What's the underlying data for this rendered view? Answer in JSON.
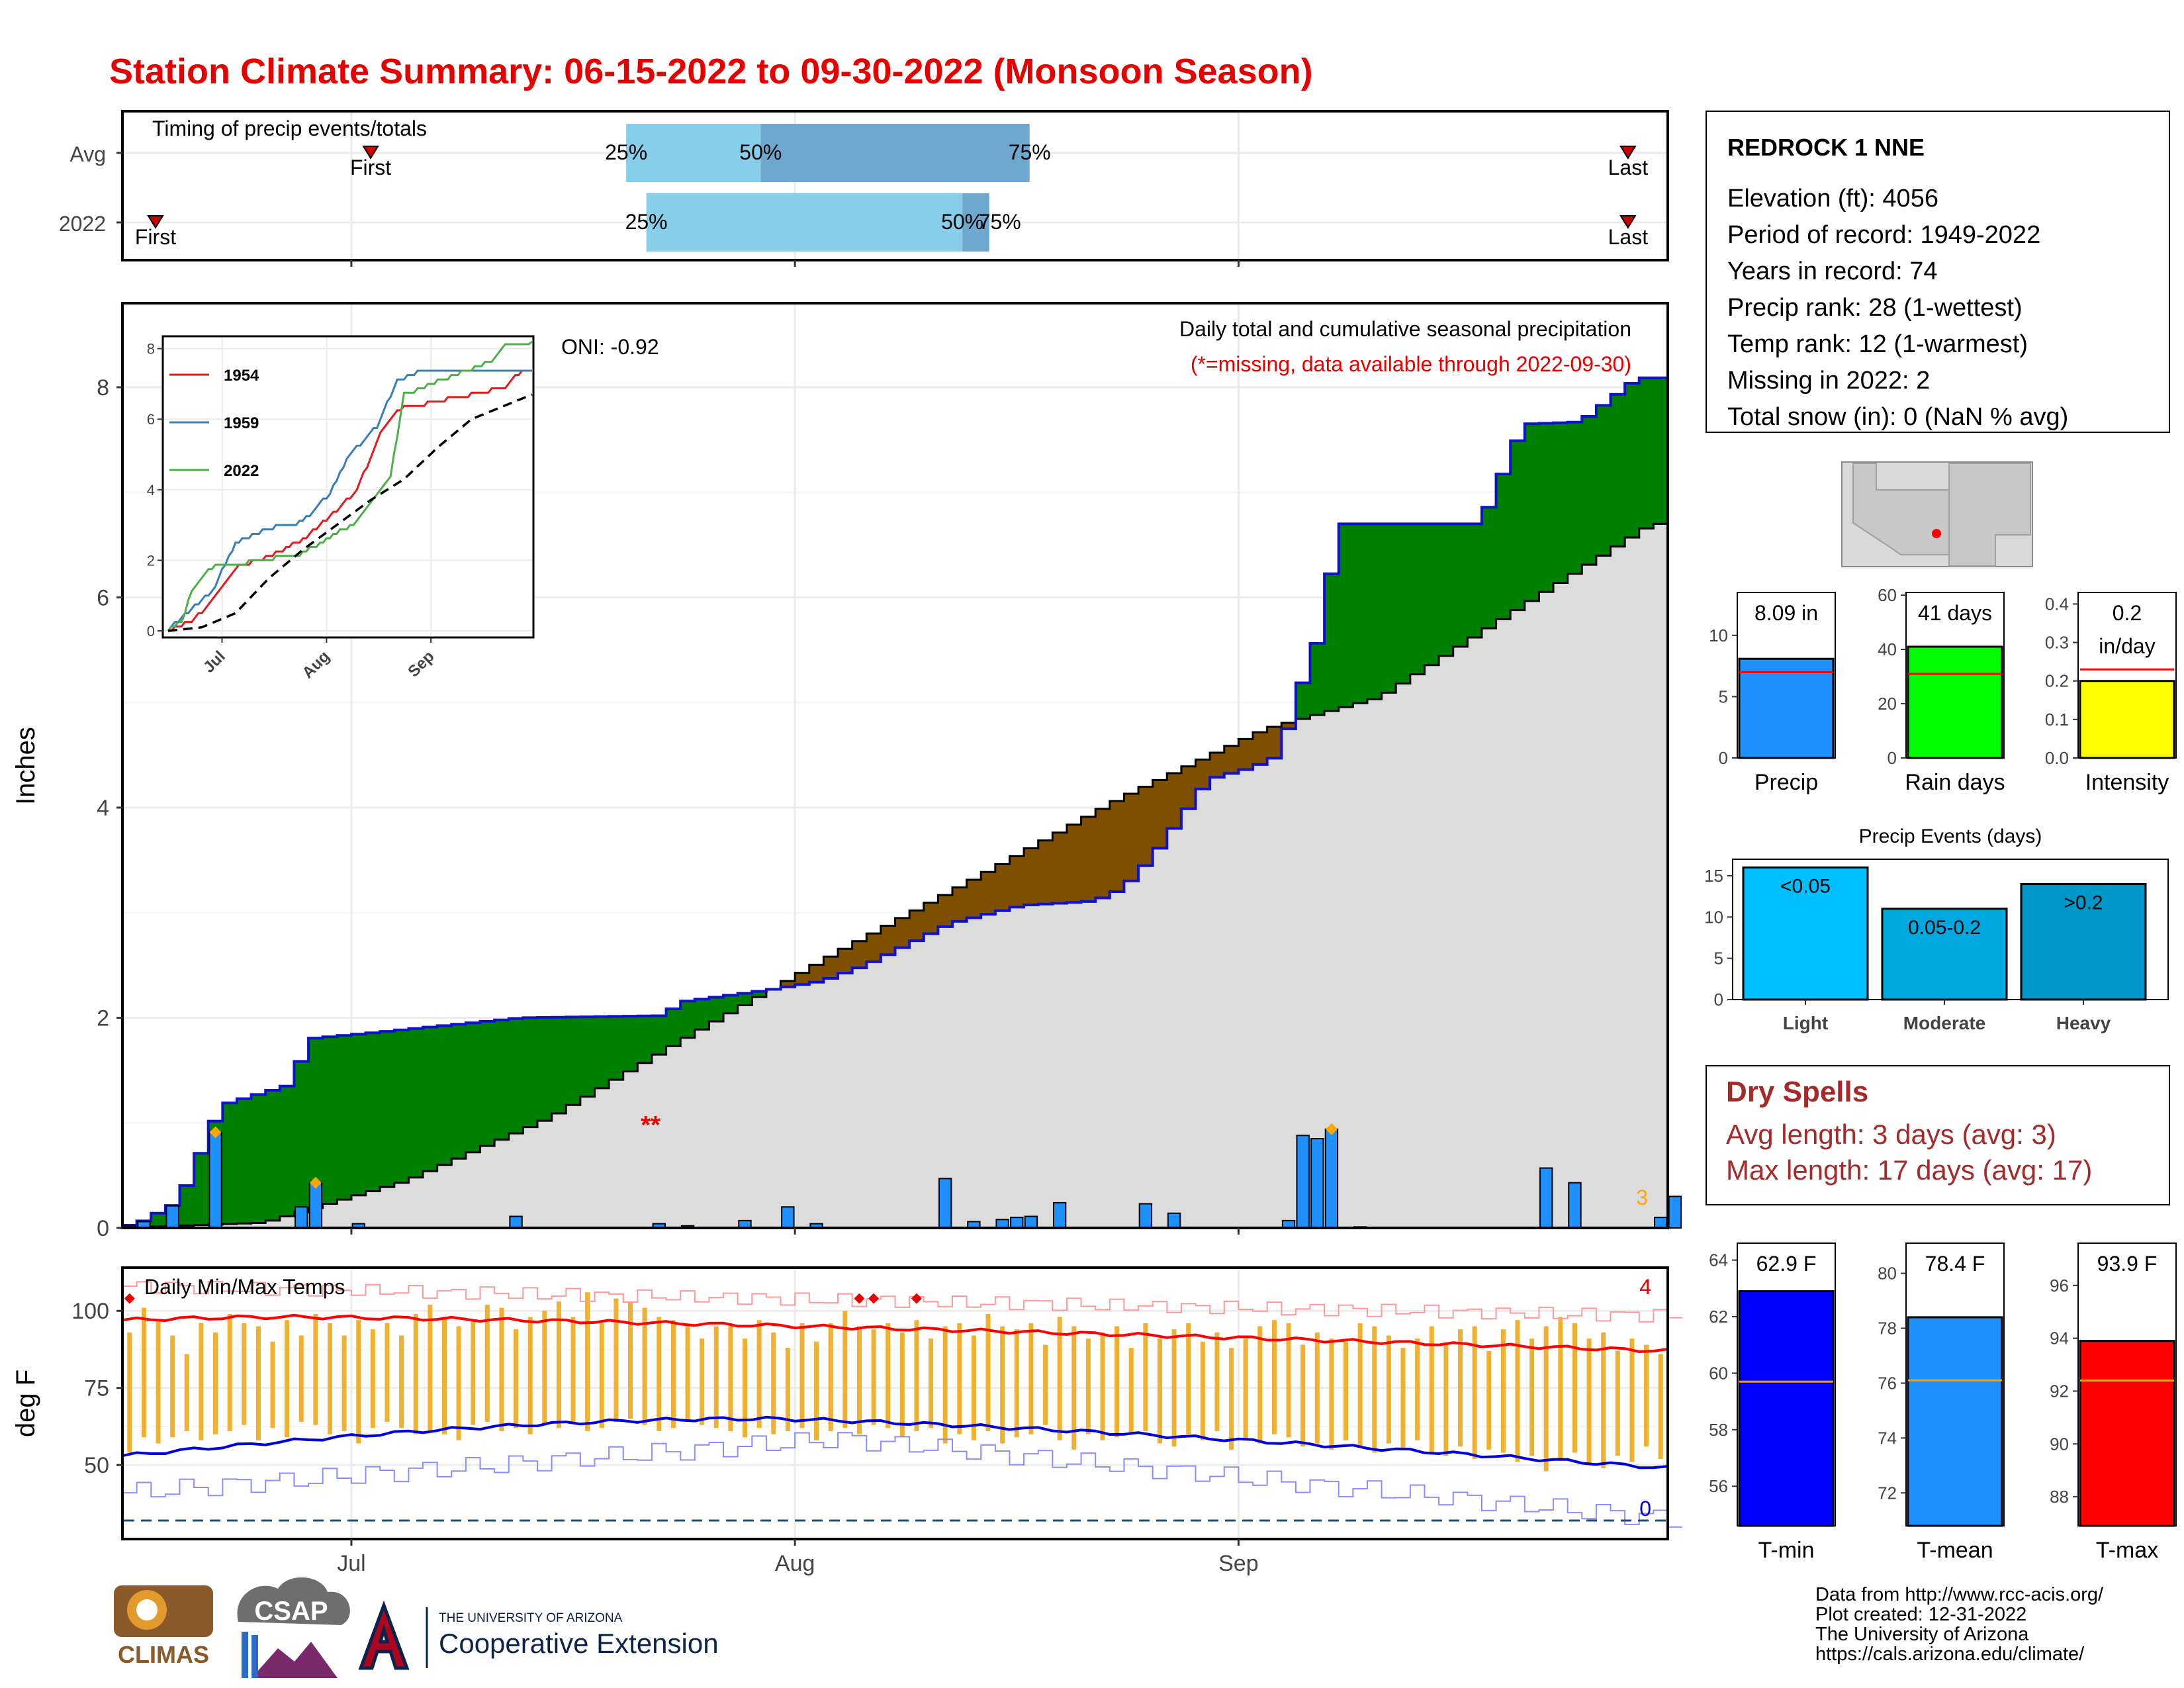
{
  "title": "Station Climate Summary: 06-15-2022 to 09-30-2022 (Monsoon Season)",
  "colors": {
    "title": "#e60000",
    "cum_above": "#008000",
    "cum_below": "#7f4f00",
    "avg_fill": "#dcdcdc",
    "obs_line": "#1010d0",
    "daily_bar": "#1e90ff",
    "temp_bar": "#f0b030",
    "tmax_avg": "#ff0000",
    "tmin_avg": "#0000dd",
    "dry_spells": "#a52a2a"
  },
  "timing": {
    "header": "Timing of precip events/totals",
    "rows": [
      {
        "label": "Avg",
        "first": 0.24,
        "p25": 0.62,
        "p50": 0.82,
        "p75": 1.22,
        "last": 2.11,
        "first_label": "First",
        "last_label": "Last",
        "p25_label": "25%",
        "p50_label": "50%",
        "p75_label": "75%"
      },
      {
        "label": "2022",
        "first": -0.08,
        "p25": 0.65,
        "p50": 1.12,
        "p75": 1.16,
        "last": 2.11,
        "first_label": "First",
        "last_label": "Last",
        "p25_label": "25%",
        "p50_label": "50%",
        "p75_label": "75%"
      }
    ]
  },
  "chart_data": [
    {
      "type": "area",
      "name": "main-precip",
      "ylabel": "Inches",
      "ylim": [
        0,
        8.8
      ],
      "yticks": [
        0,
        2,
        4,
        6,
        8
      ],
      "xticks": [
        "Jul",
        "Aug",
        "Sep"
      ],
      "x_tick_offsets_days": [
        16,
        47,
        78
      ],
      "days": 108,
      "header": "Daily total and cumulative seasonal precipitation",
      "subheader": "(*=missing, data available through 2022-09-30)",
      "oni_label": "ONI: -0.92",
      "missing_marker": "**",
      "missing_day": 37,
      "corner_label": "3",
      "cumulative_observed_knots": [
        [
          0,
          0.02
        ],
        [
          1,
          0.03
        ],
        [
          4,
          0.25
        ],
        [
          7,
          1.17
        ],
        [
          12,
          1.37
        ],
        [
          13,
          1.8
        ],
        [
          17,
          1.85
        ],
        [
          28,
          2.0
        ],
        [
          38,
          2.02
        ],
        [
          39,
          2.15
        ],
        [
          45,
          2.26
        ],
        [
          49,
          2.35
        ],
        [
          52,
          2.5
        ],
        [
          58,
          2.9
        ],
        [
          63,
          3.07
        ],
        [
          68,
          3.11
        ],
        [
          70,
          3.23
        ],
        [
          72,
          3.52
        ],
        [
          76,
          4.27
        ],
        [
          79,
          4.38
        ],
        [
          81,
          4.5
        ],
        [
          82,
          5.0
        ],
        [
          84,
          5.75
        ],
        [
          85,
          6.7
        ],
        [
          95,
          6.7
        ],
        [
          98,
          7.65
        ],
        [
          102,
          7.67
        ],
        [
          106,
          8.09
        ],
        [
          107,
          8.09
        ]
      ],
      "cumulative_average_knots": [
        [
          0,
          0.0
        ],
        [
          10,
          0.05
        ],
        [
          20,
          0.45
        ],
        [
          30,
          1.05
        ],
        [
          40,
          1.85
        ],
        [
          50,
          2.62
        ],
        [
          60,
          3.35
        ],
        [
          70,
          4.1
        ],
        [
          80,
          4.75
        ],
        [
          88,
          5.05
        ],
        [
          96,
          5.75
        ],
        [
          107,
          6.7
        ]
      ],
      "daily_precip": {
        "x": [
          1,
          2,
          4,
          7,
          13,
          14,
          17,
          28,
          38,
          40,
          44,
          47,
          49,
          58,
          60,
          62,
          63,
          64,
          66,
          72,
          74,
          82,
          83,
          84,
          85,
          87,
          100,
          102,
          108,
          109
        ],
        "values": [
          0.02,
          0.06,
          0.21,
          0.91,
          0.2,
          0.43,
          0.04,
          0.11,
          0.04,
          0.02,
          0.07,
          0.2,
          0.04,
          0.47,
          0.06,
          0.08,
          0.1,
          0.11,
          0.24,
          0.23,
          0.14,
          0.07,
          0.88,
          0.85,
          0.94,
          0.01,
          0.57,
          0.43,
          0.1,
          0.3
        ]
      },
      "diamond_days": [
        7,
        14,
        85
      ]
    },
    {
      "type": "line",
      "name": "inset-cumulative-by-year",
      "ylim": [
        0,
        8.2
      ],
      "yticks": [
        0,
        2,
        4,
        6,
        8
      ],
      "xticks": [
        "Jul",
        "Aug",
        "Sep"
      ],
      "series": [
        {
          "name": "1954",
          "color": "#e41a1c",
          "knots": [
            [
              0,
              0
            ],
            [
              7,
              0.3
            ],
            [
              12,
              0.7
            ],
            [
              16,
              1.2
            ],
            [
              20,
              1.8
            ],
            [
              30,
              2.1
            ],
            [
              40,
              2.6
            ],
            [
              50,
              3.4
            ],
            [
              56,
              4.0
            ],
            [
              64,
              5.8
            ],
            [
              69,
              6.3
            ],
            [
              100,
              6.9
            ],
            [
              104,
              7.3
            ],
            [
              108,
              7.35
            ]
          ]
        },
        {
          "name": "1959",
          "color": "#377eb8",
          "knots": [
            [
              0,
              0
            ],
            [
              4,
              0.4
            ],
            [
              13,
              1.1
            ],
            [
              20,
              2.5
            ],
            [
              30,
              2.9
            ],
            [
              40,
              3.1
            ],
            [
              48,
              3.9
            ],
            [
              54,
              5.0
            ],
            [
              62,
              5.8
            ],
            [
              68,
              7.1
            ],
            [
              76,
              7.4
            ],
            [
              108,
              7.4
            ]
          ]
        },
        {
          "name": "2022",
          "color": "#4daf4a",
          "knots": [
            [
              0,
              0
            ],
            [
              4,
              0.25
            ],
            [
              7,
              1.17
            ],
            [
              13,
              1.8
            ],
            [
              28,
              2.0
            ],
            [
              40,
              2.2
            ],
            [
              56,
              3.1
            ],
            [
              66,
              4.4
            ],
            [
              70,
              6.7
            ],
            [
              96,
              7.65
            ],
            [
              100,
              8.09
            ],
            [
              108,
              8.2
            ]
          ]
        },
        {
          "name": "avg",
          "color": "#000000",
          "dashed": true,
          "knots": [
            [
              0,
              0
            ],
            [
              10,
              0.1
            ],
            [
              20,
              0.5
            ],
            [
              30,
              1.5
            ],
            [
              40,
              2.3
            ],
            [
              50,
              3.0
            ],
            [
              60,
              3.7
            ],
            [
              70,
              4.3
            ],
            [
              80,
              5.2
            ],
            [
              90,
              6.0
            ],
            [
              108,
              6.7
            ]
          ]
        }
      ]
    },
    {
      "type": "bar",
      "name": "daily-temps",
      "title": "Daily Min/Max Temps",
      "ylabel": "deg F",
      "ylim": [
        26,
        114
      ],
      "yticks": [
        50,
        75,
        100
      ],
      "xticks": [
        "Jul",
        "Aug",
        "Sep"
      ],
      "x_tick_offsets_days": [
        16,
        47,
        78
      ],
      "corner_max_count": "4",
      "corner_min_count": "0",
      "freeze_line": 32,
      "tmax_avg_start": 97.0,
      "tmax_avg_peak": 98.0,
      "tmax_avg_end": 87.0,
      "tmin_avg_start": 53.0,
      "tmin_avg_peak": 65.0,
      "tmin_avg_end": 49.0,
      "record_high_start": 108.0,
      "record_low_start": 41.0,
      "daily_max": [
        93,
        101,
        97,
        92,
        86,
        96,
        93,
        99,
        96,
        95,
        90,
        97,
        92,
        99,
        96,
        92,
        97,
        94,
        96,
        92,
        99,
        102,
        98,
        95,
        97,
        102,
        101,
        94,
        98,
        100,
        103,
        98,
        106,
        96,
        104,
        103,
        101,
        98,
        97,
        95,
        91,
        95,
        96,
        91,
        97,
        93,
        88,
        96,
        90,
        96,
        100,
        95,
        94,
        96,
        93,
        97,
        91,
        95,
        96,
        92,
        99,
        95,
        94,
        96,
        89,
        98,
        95,
        91,
        93,
        95,
        88,
        96,
        91,
        94,
        96,
        90,
        93,
        88,
        91,
        95,
        97,
        96,
        89,
        93,
        91,
        90,
        96,
        95,
        92,
        88,
        91,
        95,
        89,
        94,
        95,
        87,
        94,
        97,
        91,
        95,
        98,
        96,
        91,
        93,
        87,
        91,
        89,
        86
      ],
      "daily_min": [
        54,
        59,
        57,
        59,
        61,
        58,
        60,
        61,
        63,
        58,
        62,
        59,
        64,
        63,
        60,
        61,
        57,
        62,
        64,
        62,
        60,
        61,
        60,
        58,
        63,
        64,
        61,
        62,
        60,
        63,
        62,
        64,
        61,
        62,
        64,
        65,
        63,
        61,
        62,
        64,
        63,
        62,
        61,
        59,
        62,
        60,
        61,
        62,
        58,
        61,
        62,
        60,
        63,
        62,
        59,
        61,
        62,
        57,
        60,
        58,
        61,
        57,
        59,
        60,
        63,
        58,
        55,
        60,
        58,
        59,
        60,
        61,
        57,
        56,
        60,
        58,
        61,
        55,
        58,
        57,
        60,
        59,
        56,
        57,
        55,
        58,
        56,
        54,
        57,
        55,
        58,
        54,
        53,
        56,
        52,
        55,
        54,
        51,
        53,
        48,
        52,
        54,
        50,
        49,
        53,
        51,
        56,
        52
      ],
      "record_marker_days": [
        1,
        52,
        53,
        56
      ]
    },
    {
      "type": "bar",
      "name": "summary-precip",
      "categories": [
        "Precip"
      ],
      "values": [
        8.09
      ],
      "average": 7.0,
      "ylim": [
        0,
        13.5
      ],
      "yticks": [
        0,
        5,
        10
      ],
      "label": "8.09 in",
      "xlabel": "Precip",
      "color": "#1e90ff"
    },
    {
      "type": "bar",
      "name": "summary-raindays",
      "categories": [
        "Rain days"
      ],
      "values": [
        41
      ],
      "average": 31,
      "ylim": [
        0,
        61
      ],
      "yticks": [
        0,
        20,
        40,
        60
      ],
      "label": "41 days",
      "xlabel": "Rain days",
      "color": "#00ff00"
    },
    {
      "type": "bar",
      "name": "summary-intensity",
      "categories": [
        "Intensity"
      ],
      "values": [
        0.2
      ],
      "average": 0.23,
      "ylim": [
        0,
        0.43
      ],
      "yticks": [
        0.0,
        0.1,
        0.2,
        0.3,
        0.4
      ],
      "label": "0.2",
      "label2": "in/day",
      "xlabel": "Intensity",
      "color": "#ffff00"
    },
    {
      "type": "bar",
      "name": "precip-events",
      "title": "Precip Events (days)",
      "categories": [
        "Light",
        "Moderate",
        "Heavy"
      ],
      "values": [
        16,
        11,
        14
      ],
      "bar_labels": [
        "<0.05",
        "0.05-0.2",
        ">0.2"
      ],
      "colors": [
        "#00bfff",
        "#00a8e0",
        "#0096c8"
      ],
      "ylim": [
        0,
        17
      ],
      "yticks": [
        0,
        5,
        10,
        15
      ]
    },
    {
      "type": "bar",
      "name": "summary-tmin",
      "categories": [
        "T-min"
      ],
      "values": [
        62.9
      ],
      "average": 59.7,
      "ylim": [
        54.6,
        64.6
      ],
      "yticks": [
        56,
        58,
        60,
        62,
        64
      ],
      "label": "62.9 F",
      "xlabel": "T-min",
      "color": "#0000ff"
    },
    {
      "type": "bar",
      "name": "summary-tmean",
      "categories": [
        "T-mean"
      ],
      "values": [
        78.4
      ],
      "average": 76.1,
      "ylim": [
        70.8,
        81.1
      ],
      "yticks": [
        72,
        74,
        76,
        78,
        80
      ],
      "label": "78.4 F",
      "xlabel": "T-mean",
      "color": "#1e90ff"
    },
    {
      "type": "bar",
      "name": "summary-tmax",
      "categories": [
        "T-max"
      ],
      "values": [
        93.9
      ],
      "average": 92.4,
      "ylim": [
        86.9,
        97.6
      ],
      "yticks": [
        88,
        90,
        92,
        94,
        96
      ],
      "label": "93.9 F",
      "xlabel": "T-max",
      "color": "#ff0000"
    }
  ],
  "station": {
    "name": "REDROCK 1 NNE",
    "lines": [
      "Elevation (ft): 4056",
      "Period of record: 1949-2022",
      "Years in record: 74",
      "Precip rank: 28 (1-wettest)",
      "Temp rank: 12 (1-warmest)",
      "Missing in 2022: 2",
      "Total snow (in): 0 (NaN % avg)"
    ]
  },
  "dry_spells": {
    "title": "Dry Spells",
    "avg": "Avg length: 3 days (avg: 3)",
    "max": "Max length: 17 days (avg: 17)"
  },
  "footer": {
    "lines": [
      "Data from http://www.rcc-acis.org/",
      "Plot created: 12-31-2022",
      "The University of Arizona",
      "https://cals.arizona.edu/climate/"
    ],
    "logos": {
      "climas": "CLIMAS",
      "csap": "CSAP",
      "ua_small": "THE UNIVERSITY OF ARIZONA",
      "ua_big": "Cooperative Extension"
    }
  }
}
